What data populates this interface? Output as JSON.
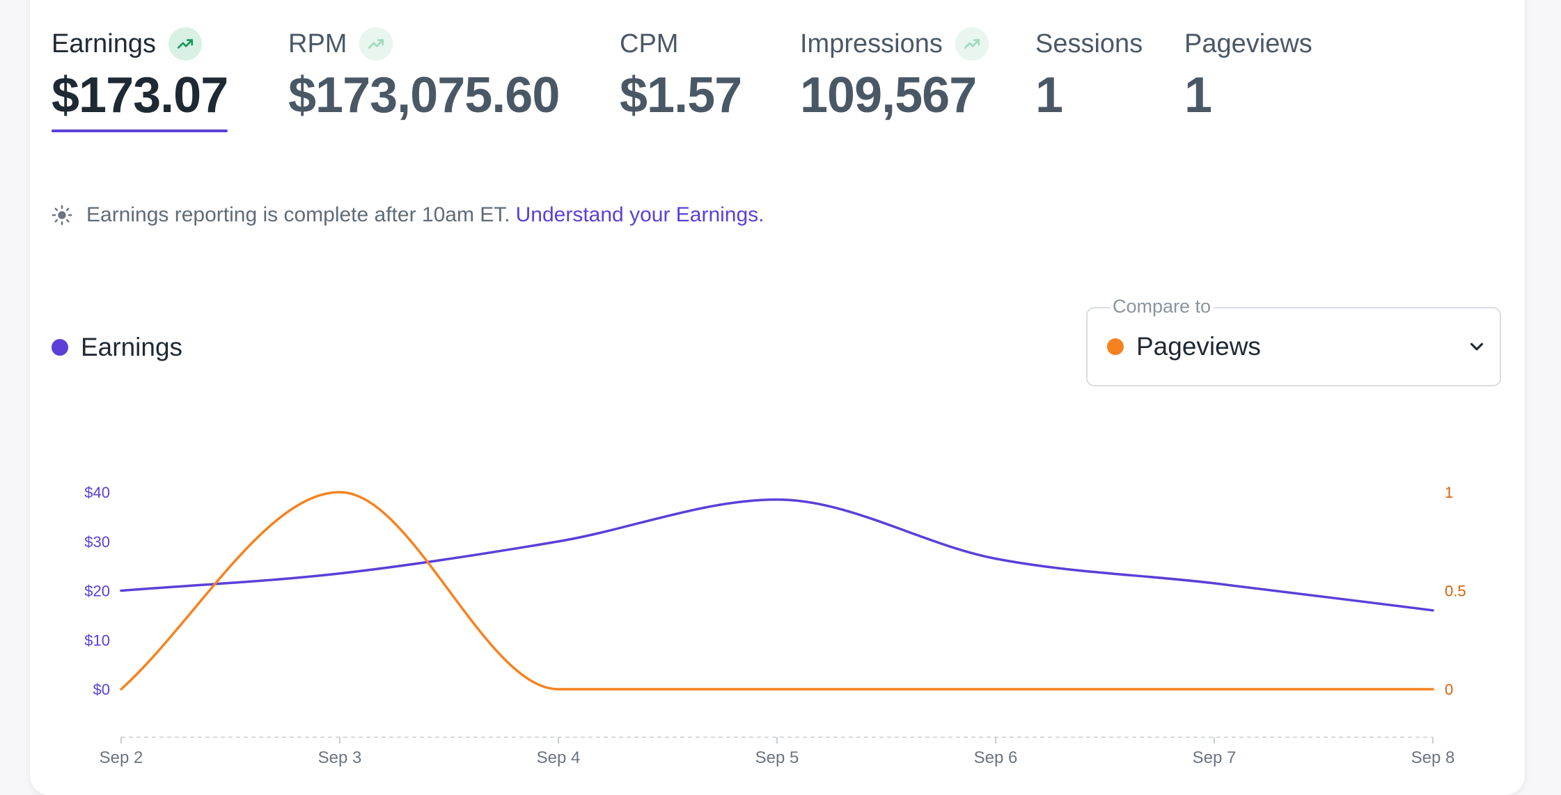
{
  "metrics": [
    {
      "label": "Earnings",
      "value": "$173.07",
      "active": true,
      "trend": "strong"
    },
    {
      "label": "RPM",
      "value": "$173,075.60",
      "active": false,
      "trend": "light"
    },
    {
      "label": "CPM",
      "value": "$1.57",
      "active": false,
      "trend": "none"
    },
    {
      "label": "Impressions",
      "value": "109,567",
      "active": false,
      "trend": "light"
    },
    {
      "label": "Sessions",
      "value": "1",
      "active": false,
      "trend": "none"
    },
    {
      "label": "Pageviews",
      "value": "1",
      "active": false,
      "trend": "none"
    }
  ],
  "notice": {
    "text": "Earnings reporting is complete after 10am ET.",
    "link": "Understand your Earnings.",
    "icon": "sun-icon"
  },
  "legend": {
    "label": "Earnings",
    "color": "#5b3fd8"
  },
  "compare": {
    "label": "Compare to",
    "selected": "Pageviews",
    "color": "#f5821f"
  },
  "colors": {
    "primary": "#5b3fd8",
    "secondary": "#f5821f",
    "trend_green": "#1a9a5c"
  },
  "chart_data": {
    "type": "line",
    "x": [
      "Sep 2",
      "Sep 3",
      "Sep 4",
      "Sep 5",
      "Sep 6",
      "Sep 7",
      "Sep 8"
    ],
    "series": [
      {
        "name": "Earnings",
        "axis": "left",
        "color": "#5b3fd8",
        "values": [
          20,
          23.5,
          30,
          38.5,
          26.5,
          21.5,
          16
        ]
      },
      {
        "name": "Pageviews",
        "axis": "right",
        "color": "#f5821f",
        "values": [
          0,
          1,
          0,
          0,
          0,
          0,
          0
        ]
      }
    ],
    "y_left": {
      "ticks": [
        "$0",
        "$10",
        "$20",
        "$30",
        "$40"
      ],
      "ylim": [
        0,
        40
      ]
    },
    "y_right": {
      "ticks": [
        "0",
        "0.5",
        "1"
      ],
      "ylim": [
        0,
        1
      ]
    },
    "grid": false
  }
}
